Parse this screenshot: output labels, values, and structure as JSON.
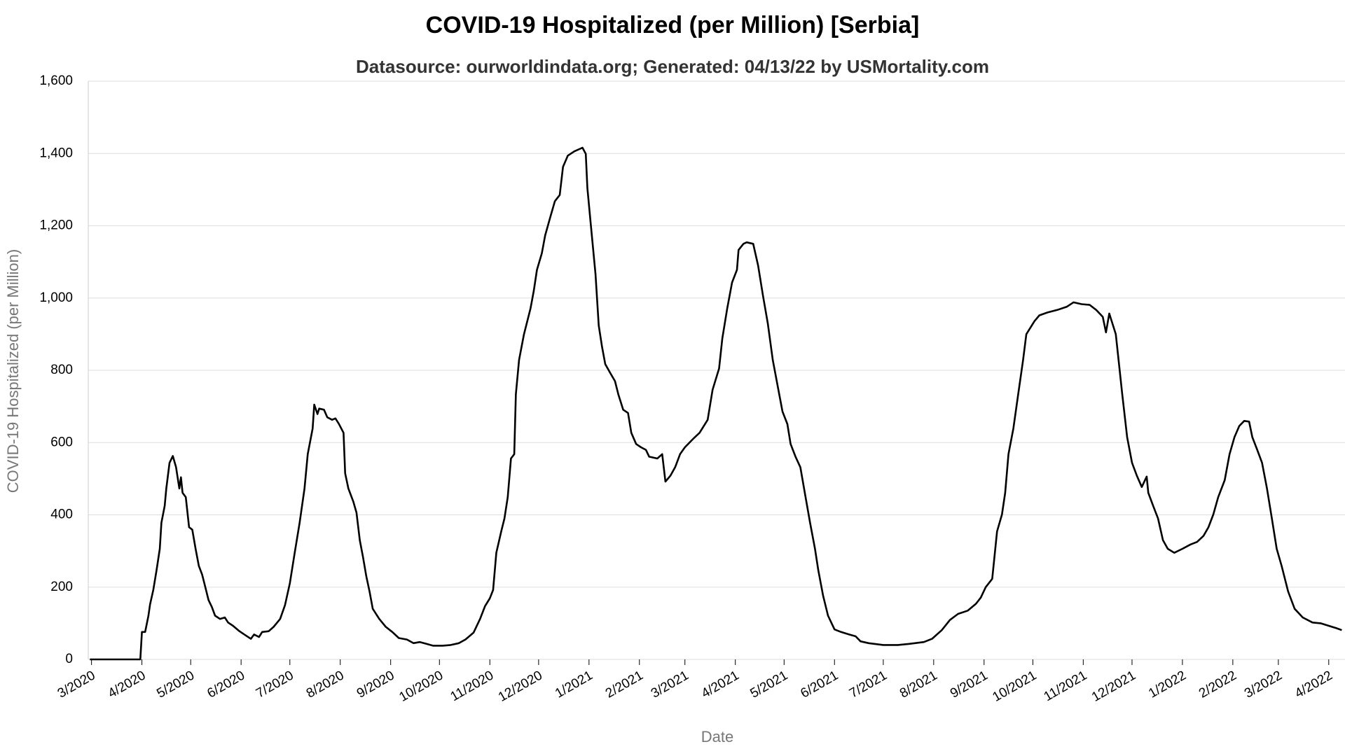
{
  "chart_data": {
    "type": "line",
    "title": "COVID-19 Hospitalized (per Million) [Serbia]",
    "subtitle": "Datasource: ourworldindata.org; Generated: 04/13/22 by USMortality.com",
    "x_label": "Date",
    "y_label": "COVID-19 Hospitalized (per Million)",
    "xlim": [
      -2,
      771
    ],
    "xticks": [
      {
        "value": 0,
        "label": "3/2020"
      },
      {
        "value": 31,
        "label": "4/2020"
      },
      {
        "value": 61,
        "label": "5/2020"
      },
      {
        "value": 92,
        "label": "6/2020"
      },
      {
        "value": 122,
        "label": "7/2020"
      },
      {
        "value": 153,
        "label": "8/2020"
      },
      {
        "value": 184,
        "label": "9/2020"
      },
      {
        "value": 214,
        "label": "10/2020"
      },
      {
        "value": 245,
        "label": "11/2020"
      },
      {
        "value": 275,
        "label": "12/2020"
      },
      {
        "value": 306,
        "label": "1/2021"
      },
      {
        "value": 337,
        "label": "2/2021"
      },
      {
        "value": 365,
        "label": "3/2021"
      },
      {
        "value": 396,
        "label": "4/2021"
      },
      {
        "value": 426,
        "label": "5/2021"
      },
      {
        "value": 457,
        "label": "6/2021"
      },
      {
        "value": 487,
        "label": "7/2021"
      },
      {
        "value": 518,
        "label": "8/2021"
      },
      {
        "value": 549,
        "label": "9/2021"
      },
      {
        "value": 579,
        "label": "10/2021"
      },
      {
        "value": 610,
        "label": "11/2021"
      },
      {
        "value": 640,
        "label": "12/2021"
      },
      {
        "value": 671,
        "label": "1/2022"
      },
      {
        "value": 702,
        "label": "2/2022"
      },
      {
        "value": 730,
        "label": "3/2022"
      },
      {
        "value": 761,
        "label": "4/2022"
      }
    ],
    "ylim": [
      0,
      1600
    ],
    "yticks": [
      0,
      200,
      400,
      600,
      800,
      {
        "value": 1000,
        "label": "1,000"
      },
      {
        "value": 1200,
        "label": "1,200"
      },
      {
        "value": 1400,
        "label": "1,400"
      },
      {
        "value": 1600,
        "label": "1,600"
      }
    ],
    "grid": true,
    "series": [
      {
        "name": "COVID-19 Hospitalized (per Million)",
        "color": "#000000",
        "x": [
          -1,
          30,
          31,
          33,
          35,
          36,
          38,
          40,
          42,
          43,
          45,
          46,
          48,
          50,
          52,
          54,
          55,
          56,
          58,
          60,
          62,
          64,
          66,
          68,
          70,
          72,
          74,
          76,
          79,
          82,
          84,
          87,
          91,
          94,
          98,
          100,
          103,
          105,
          109,
          112,
          116,
          119,
          122,
          125,
          128,
          131,
          133,
          136,
          137,
          139,
          140,
          143,
          145,
          148,
          150,
          152,
          155,
          156,
          158,
          161,
          163,
          165,
          167,
          169,
          171,
          173,
          177,
          181,
          185,
          189,
          194,
          198,
          202,
          206,
          210,
          216,
          221,
          226,
          230,
          235,
          239,
          242,
          245,
          247,
          249,
          252,
          254,
          256,
          258,
          260,
          261,
          263,
          266,
          270,
          272,
          274,
          277,
          279,
          282,
          285,
          288,
          290,
          293,
          297,
          302,
          304,
          305,
          307,
          310,
          312,
          314,
          316,
          319,
          322,
          324,
          327,
          330,
          332,
          335,
          338,
          341,
          343,
          348,
          351,
          353,
          356,
          359,
          362,
          365,
          370,
          374,
          379,
          382,
          386,
          388,
          391,
          394,
          397,
          398,
          401,
          403,
          407,
          410,
          413,
          416,
          419,
          422,
          425,
          428,
          430,
          433,
          436,
          439,
          442,
          445,
          447,
          450,
          453,
          457,
          461,
          466,
          470,
          473,
          478,
          487,
          496,
          503,
          512,
          517,
          523,
          528,
          533,
          539,
          544,
          547,
          550,
          554,
          557,
          560,
          562,
          564,
          567,
          570,
          573,
          575,
          580,
          583,
          588,
          594,
          600,
          604,
          609,
          614,
          618,
          622,
          624,
          626,
          630,
          632,
          634,
          637,
          640,
          643,
          646,
          649,
          650,
          653,
          656,
          659,
          662,
          666,
          671,
          676,
          680,
          684,
          687,
          690,
          693,
          697,
          700,
          703,
          706,
          709,
          712,
          714,
          717,
          720,
          723,
          726,
          729,
          732,
          736,
          740,
          745,
          751,
          756,
          761,
          766,
          769
        ],
        "values": [
          0,
          0,
          76,
          76,
          121,
          152,
          192,
          247,
          306,
          378,
          425,
          473,
          544,
          563,
          532,
          473,
          504,
          461,
          449,
          366,
          359,
          306,
          259,
          235,
          200,
          164,
          145,
          121,
          112,
          116,
          102,
          93,
          78,
          69,
          57,
          69,
          62,
          76,
          78,
          90,
          112,
          150,
          211,
          295,
          378,
          473,
          568,
          639,
          705,
          679,
          694,
          691,
          670,
          663,
          667,
          653,
          627,
          515,
          473,
          437,
          406,
          330,
          283,
          230,
          188,
          140,
          112,
          90,
          76,
          59,
          55,
          45,
          48,
          43,
          38,
          38,
          40,
          45,
          55,
          74,
          112,
          147,
          169,
          192,
          295,
          354,
          390,
          449,
          556,
          568,
          734,
          829,
          900,
          971,
          1019,
          1078,
          1124,
          1173,
          1221,
          1268,
          1285,
          1363,
          1394,
          1406,
          1416,
          1399,
          1304,
          1209,
          1066,
          924,
          865,
          817,
          793,
          770,
          734,
          691,
          682,
          627,
          596,
          587,
          580,
          561,
          556,
          568,
          492,
          508,
          532,
          568,
          587,
          610,
          627,
          663,
          746,
          805,
          888,
          971,
          1043,
          1078,
          1133,
          1150,
          1154,
          1150,
          1090,
          1007,
          929,
          829,
          758,
          686,
          651,
          596,
          561,
          532,
          454,
          378,
          306,
          247,
          176,
          121,
          83,
          76,
          69,
          64,
          50,
          45,
          40,
          40,
          43,
          48,
          57,
          81,
          109,
          126,
          135,
          154,
          171,
          200,
          223,
          354,
          401,
          461,
          568,
          639,
          734,
          829,
          900,
          936,
          952,
          960,
          967,
          976,
          988,
          983,
          981,
          967,
          948,
          905,
          957,
          900,
          817,
          734,
          615,
          544,
          508,
          477,
          506,
          461,
          425,
          390,
          330,
          306,
          295,
          306,
          318,
          325,
          342,
          366,
          401,
          449,
          496,
          568,
          615,
          646,
          660,
          658,
          615,
          580,
          544,
          473,
          390,
          306,
          259,
          188,
          140,
          116,
          102,
          100,
          93,
          86,
          81
        ]
      }
    ]
  }
}
